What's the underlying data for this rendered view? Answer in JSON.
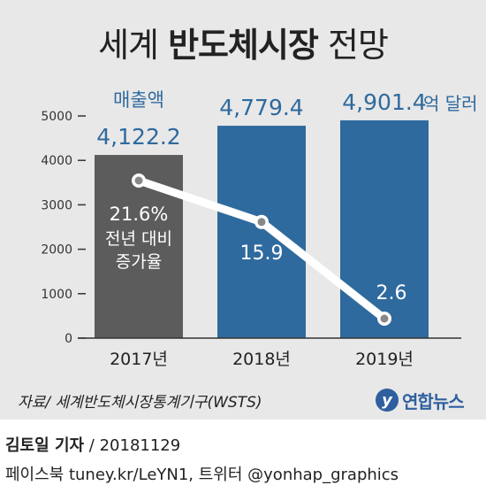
{
  "header": {
    "title_normal_1": "세계 ",
    "title_bold": "반도체시장",
    "title_normal_2": " 전망"
  },
  "chart_data": {
    "type": "bar",
    "categories": [
      "2017년",
      "2018년",
      "2019년"
    ],
    "series": [
      {
        "name": "매출액",
        "unit": "억 달러",
        "values": [
          4122.2,
          4779.4,
          4901.4
        ]
      },
      {
        "name": "전년 대비 증가율",
        "unit": "%",
        "values": [
          21.6,
          15.9,
          2.6
        ]
      }
    ],
    "bar_value_labels": [
      "4,122.2",
      "4,779.4",
      "4,901.4"
    ],
    "bar_unit_label": "억 달러",
    "sales_label": "매출액",
    "growth_labels": [
      "21.6%",
      "15.9",
      "2.6"
    ],
    "growth_caption_line1": "전년 대비",
    "growth_caption_line2": "증가율",
    "yticks": [
      0,
      1000,
      2000,
      3000,
      4000,
      5000
    ],
    "ylim": [
      0,
      5000
    ],
    "bar_colors": [
      "#5c5c5c",
      "#2f6a9e",
      "#2f6a9e"
    ],
    "bar_value_colors": [
      "#2f6a9e",
      "#2f6a9e",
      "#2f6a9e"
    ],
    "line_color": "#ffffff"
  },
  "footer": {
    "source": "자료/ 세계반도체시장통계기구(WSTS)",
    "logo_mark": "y",
    "logo_text": "연합뉴스",
    "byline_name": "김토일 기자",
    "byline_date": " / 20181129",
    "social": "페이스북 tuney.kr/LeYN1, 트위터 @yonhap_graphics"
  }
}
